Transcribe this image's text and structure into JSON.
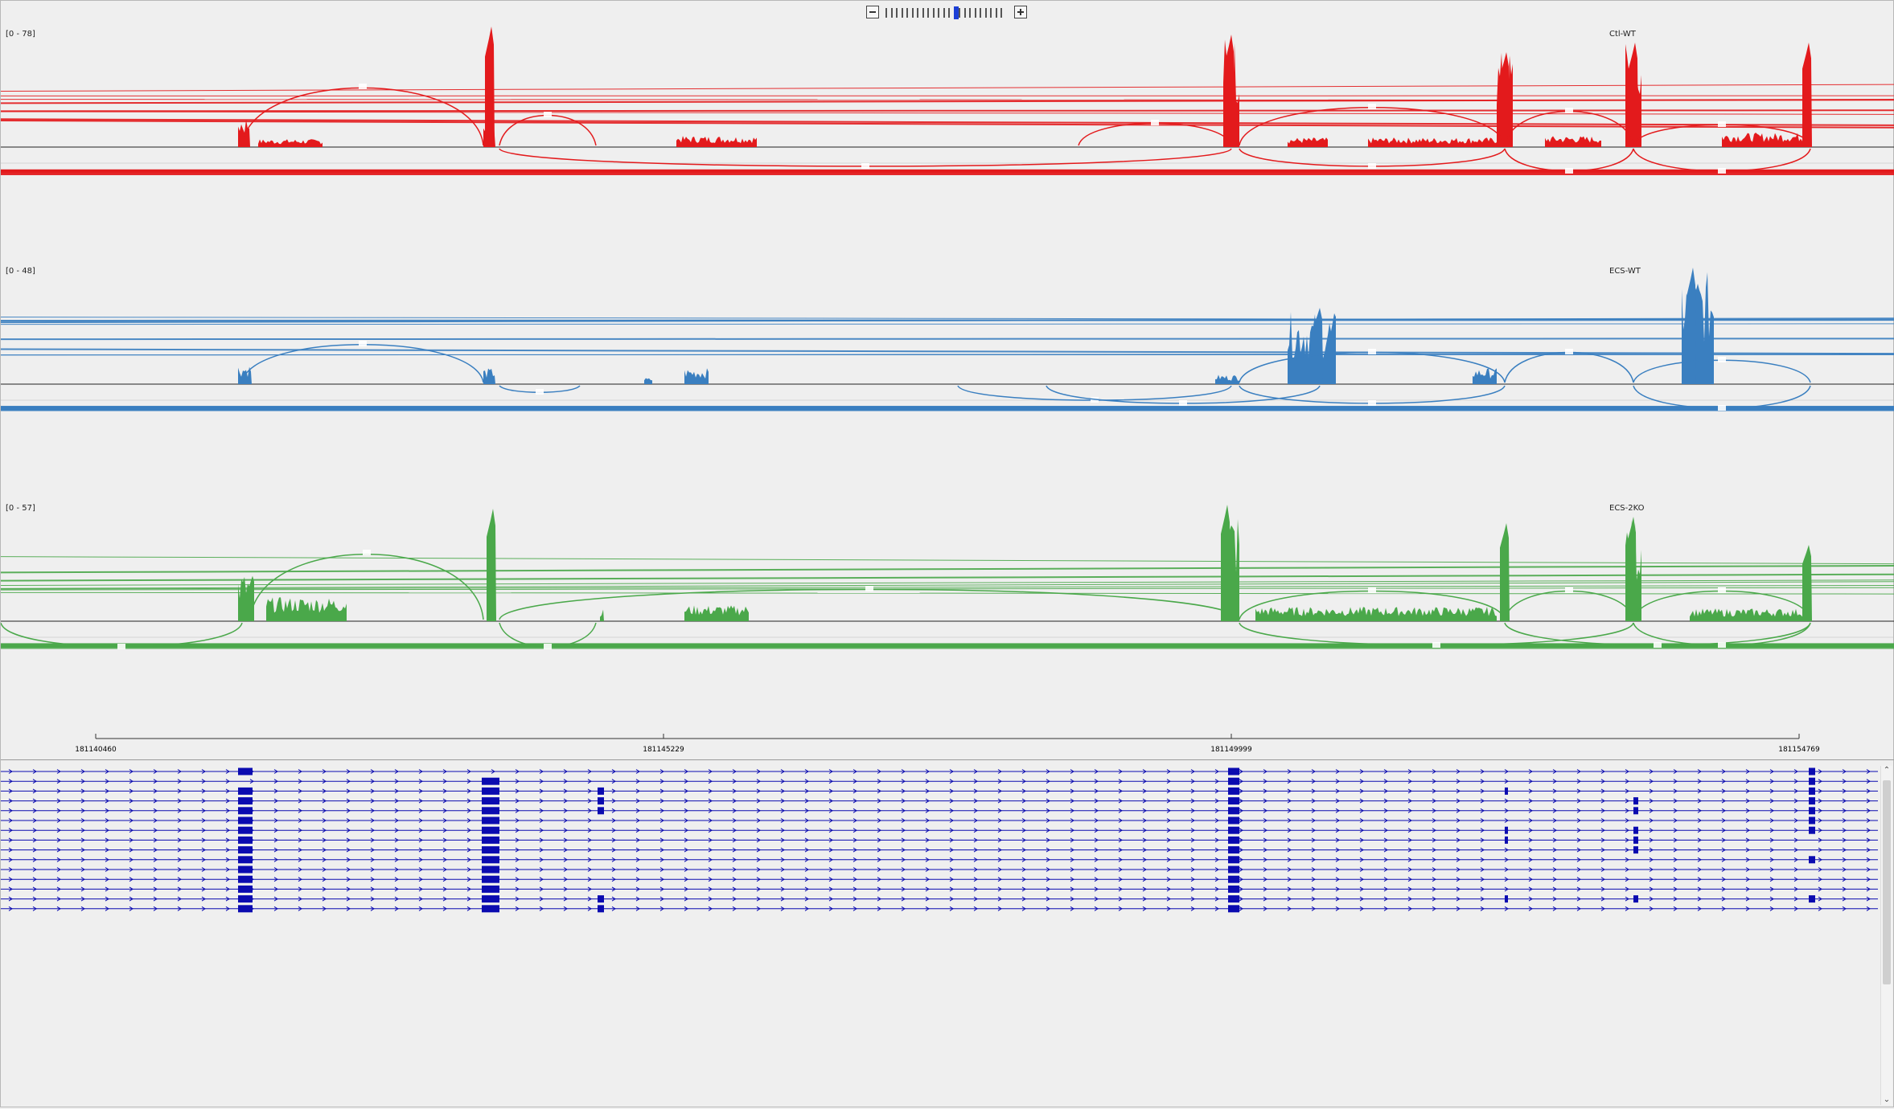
{
  "zoom": {
    "minus_label": "−",
    "plus_label": "+",
    "levels": 23,
    "current_level": 13
  },
  "tracks": [
    {
      "name": "Ctl-WT",
      "range": "[0 - 78]",
      "color": "#e31a1c"
    },
    {
      "name": "ECS-WT",
      "range": "[0 - 48]",
      "color": "#3a7fc0"
    },
    {
      "name": "ECS-2KO",
      "range": "[0 - 57]",
      "color": "#4aa84a"
    }
  ],
  "ruler": {
    "ticks": [
      "181140460",
      "181145229",
      "181149999",
      "181154769"
    ]
  },
  "gene_track": {
    "color": "#0b0bb0",
    "transcript_count": 15
  }
}
